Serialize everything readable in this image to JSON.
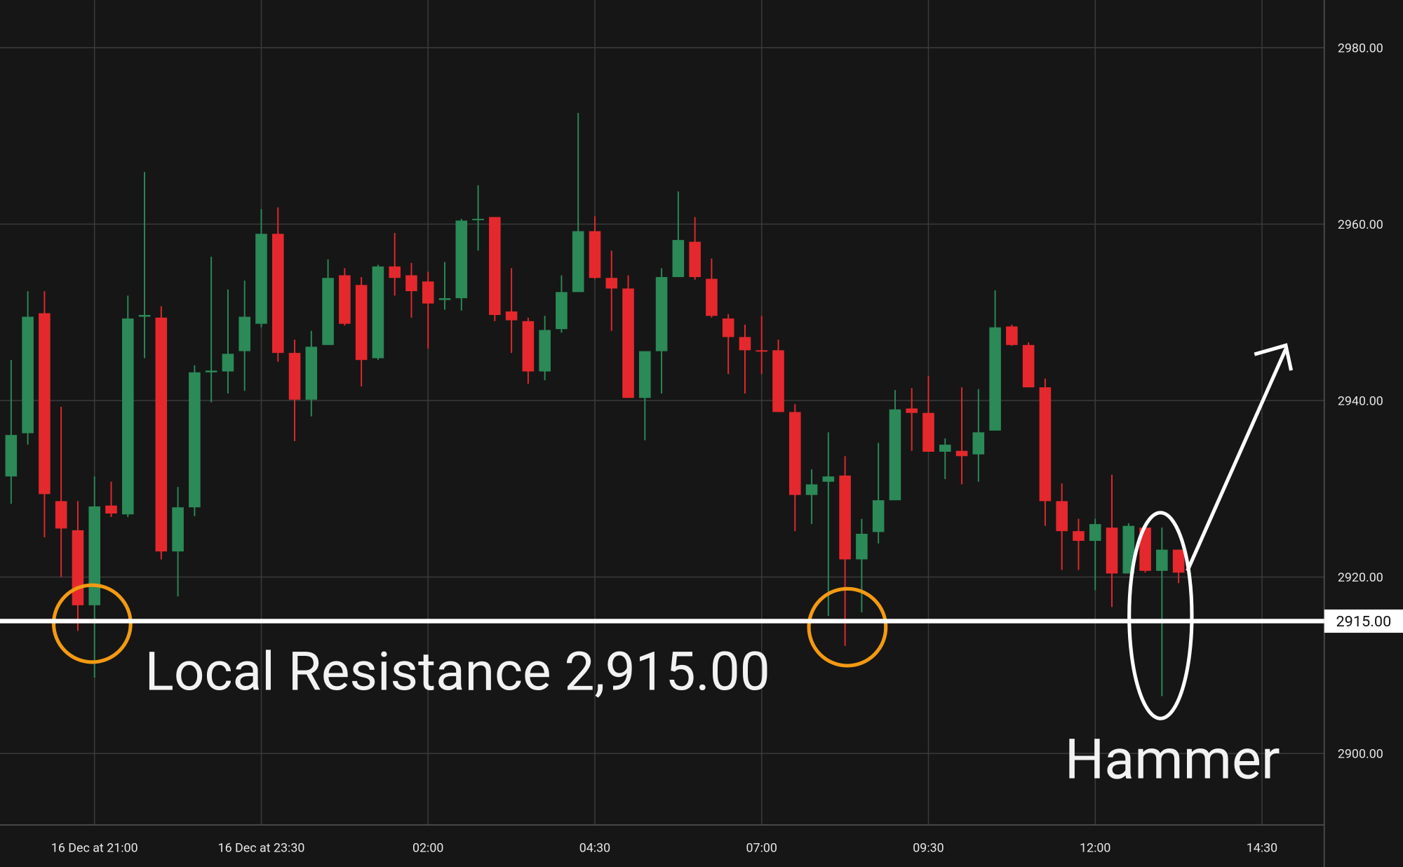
{
  "chart_data": {
    "type": "candlestick",
    "x": [
      "19:45",
      "20:00",
      "20:15",
      "20:30",
      "20:45",
      "21:00",
      "21:15",
      "21:30",
      "21:45",
      "22:00",
      "22:15",
      "22:30",
      "22:45",
      "23:00",
      "23:15",
      "23:30",
      "23:45",
      "00:00",
      "00:15",
      "00:30",
      "00:45",
      "01:00",
      "01:15",
      "01:30",
      "01:45",
      "02:00",
      "02:15",
      "02:30",
      "02:45",
      "03:00",
      "03:15",
      "03:30",
      "03:45",
      "04:00",
      "04:15",
      "04:30",
      "04:45",
      "05:00",
      "05:15",
      "05:30",
      "05:45",
      "06:00",
      "06:15",
      "06:30",
      "06:45",
      "07:00",
      "07:15",
      "07:30",
      "07:45",
      "08:00",
      "08:15",
      "08:30",
      "08:45",
      "09:00",
      "09:15",
      "09:30",
      "09:45",
      "10:00",
      "10:15",
      "10:30",
      "10:45",
      "11:00",
      "11:15",
      "11:30",
      "11:45",
      "12:00",
      "12:15",
      "12:30",
      "12:45",
      "13:00",
      "13:15"
    ],
    "open": [
      2931.4,
      2936.3,
      2949.9,
      2928.6,
      2925.3,
      2916.8,
      2928.1,
      2927.1,
      2949.5,
      2949.4,
      2922.9,
      2927.9,
      2943.2,
      2943.3,
      2945.6,
      2948.7,
      2958.9,
      2945.4,
      2940.1,
      2946.3,
      2954.2,
      2953.1,
      2944.8,
      2955.2,
      2954.2,
      2953.5,
      2951.4,
      2951.6,
      2960.5,
      2960.8,
      2950.1,
      2949.0,
      2943.3,
      2948.1,
      2952.3,
      2959.2,
      2953.9,
      2952.7,
      2940.3,
      2945.6,
      2954.0,
      2958.0,
      2953.8,
      2949.3,
      2947.2,
      2945.7,
      2945.7,
      2938.7,
      2929.3,
      2930.8,
      2931.5,
      2922.0,
      2925.1,
      2928.7,
      2939.1,
      2938.6,
      2934.2,
      2934.3,
      2933.9,
      2936.6,
      2948.4,
      2946.3,
      2941.5,
      2928.6,
      2925.2,
      2924.1,
      2925.6,
      2920.4,
      2925.6,
      2920.7,
      2923.1
    ],
    "high": [
      2944.6,
      2952.4,
      2952.4,
      2939.3,
      2928.6,
      2931.4,
      2930.8,
      2951.9,
      2965.9,
      2950.7,
      2930.2,
      2944.0,
      2956.3,
      2952.6,
      2953.6,
      2961.7,
      2961.9,
      2946.9,
      2947.9,
      2956.0,
      2955.0,
      2954.0,
      2955.4,
      2959.0,
      2955.6,
      2954.6,
      2955.7,
      2960.6,
      2964.4,
      2960.8,
      2955.0,
      2949.4,
      2949.6,
      2954.2,
      2972.6,
      2960.9,
      2957.0,
      2954.2,
      2945.6,
      2955.0,
      2963.7,
      2960.8,
      2956.1,
      2949.8,
      2948.6,
      2949.6,
      2946.9,
      2939.6,
      2932.2,
      2936.4,
      2933.7,
      2926.6,
      2935.2,
      2941.2,
      2941.4,
      2942.8,
      2935.7,
      2941.5,
      2941.3,
      2952.5,
      2948.6,
      2946.6,
      2942.5,
      2930.6,
      2926.6,
      2926.6,
      2931.6,
      2926.1,
      2925.8,
      2925.6,
      2923.1
    ],
    "low": [
      2928.3,
      2935.0,
      2924.5,
      2920.0,
      2913.9,
      2908.6,
      2926.8,
      2926.8,
      2944.8,
      2922.0,
      2917.8,
      2926.9,
      2939.8,
      2940.8,
      2941.1,
      2948.3,
      2944.4,
      2935.4,
      2938.2,
      2946.3,
      2948.5,
      2941.6,
      2944.6,
      2951.9,
      2949.4,
      2945.9,
      2950.3,
      2950.2,
      2957.0,
      2949.0,
      2945.4,
      2941.9,
      2942.3,
      2947.7,
      2952.3,
      2953.8,
      2947.9,
      2940.3,
      2935.5,
      2940.8,
      2954.0,
      2953.7,
      2949.4,
      2943.0,
      2940.8,
      2943.0,
      2938.7,
      2925.2,
      2926.0,
      2915.6,
      2912.2,
      2916.0,
      2923.8,
      2928.7,
      2934.3,
      2934.2,
      2931.1,
      2930.5,
      2930.8,
      2936.6,
      2946.2,
      2941.5,
      2925.8,
      2920.8,
      2920.8,
      2918.5,
      2916.6,
      2920.4,
      2920.5,
      2906.5,
      2919.3
    ],
    "close": [
      2936.1,
      2949.5,
      2929.4,
      2925.5,
      2916.8,
      2928.0,
      2927.2,
      2949.3,
      2949.7,
      2922.9,
      2927.9,
      2943.2,
      2943.4,
      2945.3,
      2949.5,
      2958.9,
      2945.4,
      2940.1,
      2946.1,
      2953.9,
      2948.7,
      2944.6,
      2955.2,
      2953.9,
      2952.4,
      2951.0,
      2951.6,
      2960.4,
      2960.6,
      2949.7,
      2949.1,
      2943.3,
      2948.0,
      2952.3,
      2959.2,
      2953.9,
      2952.7,
      2940.3,
      2945.6,
      2954.0,
      2958.2,
      2954.0,
      2949.6,
      2947.2,
      2945.7,
      2945.6,
      2938.7,
      2929.3,
      2930.5,
      2931.4,
      2922.0,
      2924.9,
      2928.7,
      2939.0,
      2938.6,
      2934.2,
      2935.0,
      2933.7,
      2936.4,
      2948.3,
      2946.3,
      2941.5,
      2928.6,
      2925.2,
      2924.1,
      2926.0,
      2920.4,
      2925.8,
      2920.7,
      2923.1,
      2920.5
    ],
    "up_color": "#2b8a57",
    "down_color": "#e5282d",
    "xlim": [
      "19:35",
      "15:26"
    ],
    "xticks": [
      {
        "value": "21:00",
        "label": "16 Dec at 21:00"
      },
      {
        "value": "23:30",
        "label": "16 Dec at 23:30"
      },
      "02:00",
      "04:30",
      "07:00",
      "09:30",
      "12:00",
      "14:30"
    ],
    "ylim": [
      2891.9,
      2985.4
    ],
    "yticks": [
      {
        "value": 2900,
        "label": "2900.00"
      },
      {
        "value": 2920,
        "label": "2920.00"
      },
      {
        "value": 2940,
        "label": "2940.00"
      },
      {
        "value": 2960,
        "label": "2960.00"
      },
      {
        "value": 2980,
        "label": "2980.00"
      }
    ],
    "grid": true,
    "hline": {
      "value": 2915,
      "label": "2915.00"
    },
    "annotations": [
      "Local Resistance 2,915.00",
      "Hammer"
    ]
  }
}
